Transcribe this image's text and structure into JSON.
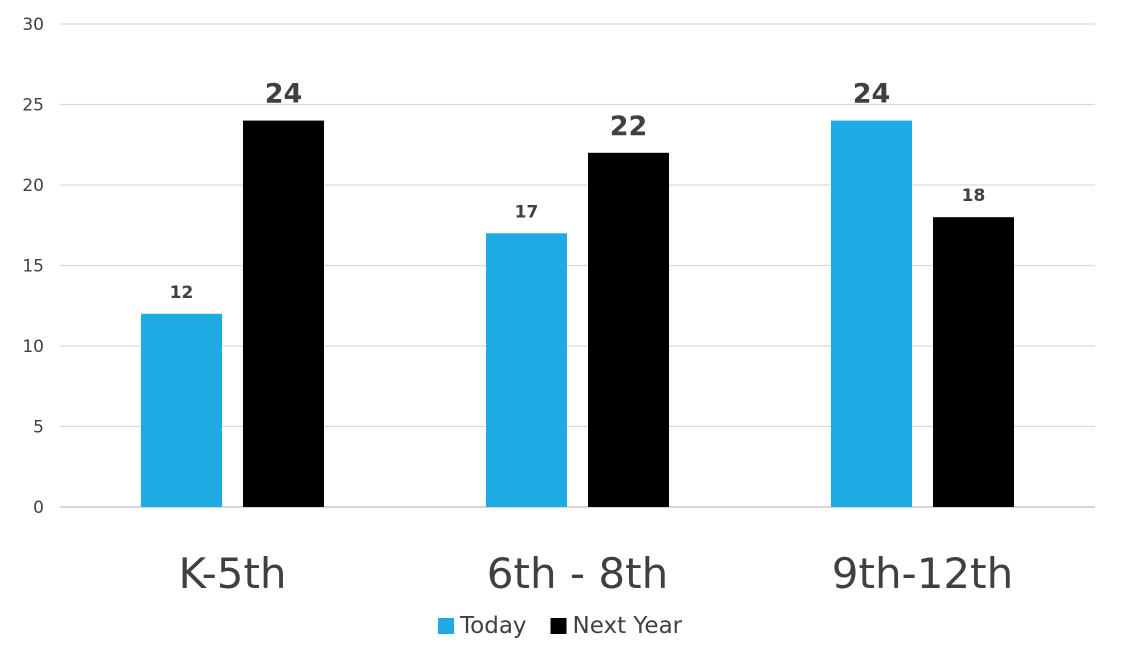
{
  "chart_data": {
    "type": "bar",
    "categories": [
      "K-5th",
      "6th - 8th",
      "9th-12th"
    ],
    "series": [
      {
        "name": "Today",
        "color": "#1EABE3",
        "values": [
          12,
          17,
          24
        ]
      },
      {
        "name": "Next Year",
        "color": "#000000",
        "values": [
          24,
          22,
          18
        ]
      }
    ],
    "ylim": [
      0,
      30
    ],
    "yticks": [
      0,
      5,
      10,
      15,
      20,
      25,
      30
    ],
    "grid": true,
    "legend": "bottom",
    "data_labels": true
  }
}
